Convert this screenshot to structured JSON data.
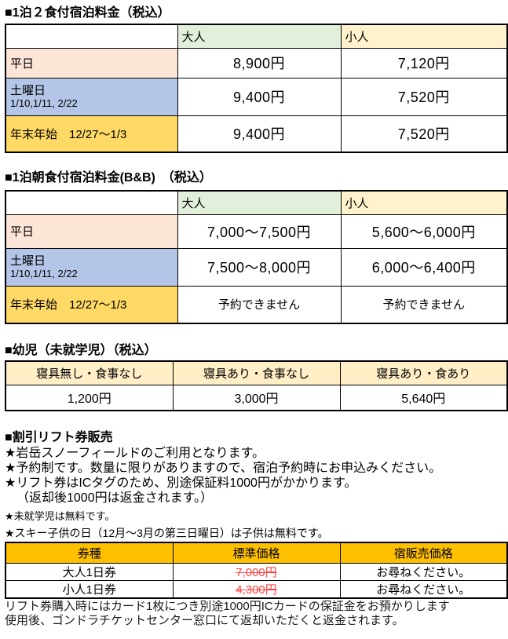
{
  "colors": {
    "header-green": "#e2efda",
    "header-cream": "#fff2cc",
    "row-pink": "#fce4d6",
    "row-blue": "#b4c6e7",
    "row-gold": "#ffd966",
    "infant-header": "#ffeec6",
    "ticket-header": "#ffc000",
    "strike-red": "#ff4242",
    "border": "#000000"
  },
  "s1": {
    "title": "■1泊２食付宿泊料金（税込）",
    "headers": {
      "adult": "大人",
      "child": "小人"
    },
    "rows": [
      {
        "label": "平日",
        "adult": "8,900円",
        "child": "7,120円"
      },
      {
        "label": "土曜日",
        "sub": "1/10,1/11, 2/22",
        "adult": "9,400円",
        "child": "7,520円"
      },
      {
        "label": "年末年始　12/27～1/3",
        "adult": "9,400円",
        "child": "7,520円"
      }
    ]
  },
  "s2": {
    "title": "■1泊朝食付宿泊料金(B&B)　（税込）",
    "headers": {
      "adult": "大人",
      "child": "小人"
    },
    "rows": [
      {
        "label": "平日",
        "adult": "7,000～7,500円",
        "child": "5,600～6,000円"
      },
      {
        "label": "土曜日",
        "sub": "1/10,1/11, 2/22",
        "adult": "7,500～8,000円",
        "child": "6,000～6,400円"
      },
      {
        "label": "年末年始　12/27～1/3",
        "adult": "予約できません",
        "child": "予約できません"
      }
    ]
  },
  "s3": {
    "title": "■幼児（未就学児）（税込）",
    "headers": [
      "寝具無し・食事なし",
      "寝具あり・食事なし",
      "寝具あり・食あり"
    ],
    "values": [
      "1,200円",
      "3,000円",
      "5,640円"
    ]
  },
  "s4": {
    "title": "■割引リフト券販売",
    "notes": [
      "★岩岳スノーフィールドのご利用となります。",
      "★予約制です。数量に限りがありますので、宿泊予約時にお申込みください。",
      "★リフト券はICタグのため、別途保証料1000円がかかります。",
      "（返却後1000円は返金されます。）",
      "★未就学児は無料です。",
      "★スキー子供の日（12月～3月の第三日曜日）は子供は無料です。"
    ],
    "ticket_table": {
      "headers": [
        "券種",
        "標準価格",
        "宿販売価格"
      ],
      "rows": [
        {
          "type": "大人1日券",
          "standard_price": "7,000円",
          "lodge_price": "お尋ねください。"
        },
        {
          "type": "小人1日券",
          "standard_price": "4,300円",
          "lodge_price": "お尋ねください。"
        }
      ]
    },
    "footnotes": [
      "リフト券購入時にはカード1枚につき別途1000円ICカードの保証金をお預かりします",
      "使用後、ゴンドラチケットセンター窓口にて返却いただくと返金されます。"
    ]
  }
}
